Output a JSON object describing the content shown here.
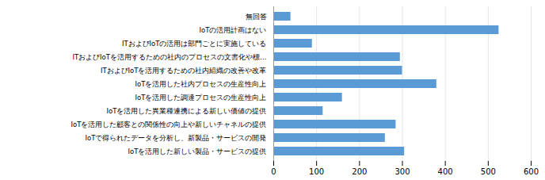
{
  "chart_data": {
    "type": "bar",
    "orientation": "horizontal",
    "categories": [
      "無回答",
      "IoTの活用計画はない",
      "ITおよびIoTの活用は部門ごとに実施している",
      "ITおよびIoTを活用するための社内のプロセスの文書化や標…",
      "ITおよびIoTを活用するための社内組織の改善や改革",
      "IoTを活用した社内プロセスの生産性向上",
      "IoTを活用した調達プロセスの生産性向上",
      "IoTを活用した異業種連携による新しい価値の提供",
      "IoTを活用した顧客との関係性の向上や新しいチャネルの提供",
      "IoTで得られたデータを分析し、新製品・サービスの開発",
      "IoTを活用した新しい製品・サービスの提供"
    ],
    "values": [
      40,
      525,
      90,
      295,
      300,
      380,
      160,
      115,
      285,
      260,
      305
    ],
    "color": "#5B9BD5",
    "xlim": [
      0,
      600
    ],
    "xticks": [
      0,
      100,
      200,
      300,
      400,
      500,
      600
    ],
    "grid": true
  }
}
